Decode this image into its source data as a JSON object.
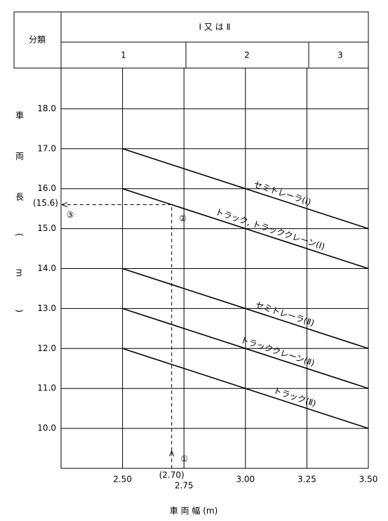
{
  "chart_data": {
    "type": "line",
    "header": {
      "title": "分類",
      "group": "Ⅰ 又 は Ⅱ",
      "columns": [
        "1",
        "2",
        "3"
      ]
    },
    "x_label": "車 両 幅 (m)",
    "y_label": "車両長(m)",
    "xlim": [
      2.25,
      3.5
    ],
    "ylim": [
      9,
      19
    ],
    "xticks": [
      {
        "value": 2.5,
        "label": "2.50"
      },
      2.75,
      {
        "value": 3.0,
        "label": "3.00"
      },
      3.25,
      {
        "value": 3.5,
        "label": "3.50"
      }
    ],
    "yticks": [
      {
        "value": 10,
        "label": "10.0"
      },
      {
        "value": 11,
        "label": "11.0"
      },
      {
        "value": 12,
        "label": "12.0"
      },
      {
        "value": 13,
        "label": "13.0"
      },
      {
        "value": 14,
        "label": "14.0"
      },
      {
        "value": 15,
        "label": "15.0"
      },
      {
        "value": 16,
        "label": "16.0"
      },
      {
        "value": 17,
        "label": "17.0"
      },
      {
        "value": 18,
        "label": "18.0"
      }
    ],
    "grid": true,
    "series": [
      {
        "name": "セミトレーラ(Ⅰ)",
        "color": "#000000",
        "x": [
          2.5,
          3.5
        ],
        "values": [
          17,
          15
        ]
      },
      {
        "name": "トラック, トラッククレーン(Ⅰ)",
        "color": "#000000",
        "x": [
          2.5,
          3.5
        ],
        "values": [
          16,
          14
        ]
      },
      {
        "name": "セミトレーラ(Ⅱ)",
        "color": "#000000",
        "x": [
          2.5,
          3.5
        ],
        "values": [
          14,
          12
        ]
      },
      {
        "name": "トラッククレーン(Ⅱ)",
        "color": "#000000",
        "x": [
          2.5,
          3.5
        ],
        "values": [
          13,
          11
        ]
      },
      {
        "name": "トラック(Ⅱ)",
        "color": "#000000",
        "x": [
          2.5,
          3.5
        ],
        "values": [
          12,
          10
        ]
      }
    ],
    "reading": {
      "x": {
        "value": 2.7,
        "label": "(2.70)"
      },
      "y": {
        "value": 15.6,
        "label": "(15.6)"
      },
      "steps": [
        "①",
        "②",
        "③"
      ]
    }
  }
}
